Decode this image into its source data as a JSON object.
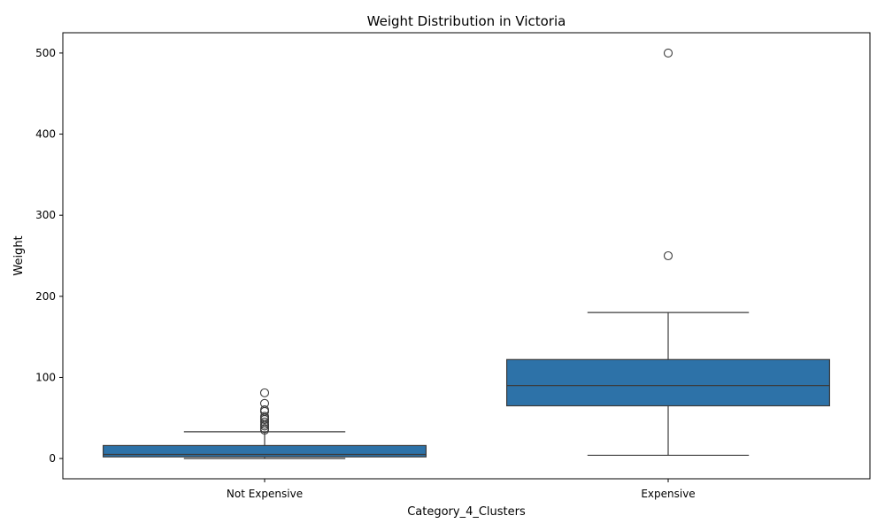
{
  "chart_data": {
    "type": "box",
    "title": "Weight Distribution in Victoria",
    "xlabel": "Category_4_Clusters",
    "ylabel": "Weight",
    "ylim": [
      -25,
      525
    ],
    "y_ticks": [
      0,
      100,
      200,
      300,
      400,
      500
    ],
    "grid": false,
    "legend": "none",
    "box_color": "#2d72a8",
    "line_color": "#3b3b3b",
    "categories": [
      "Not Expensive",
      "Expensive"
    ],
    "boxes": [
      {
        "category": "Not Expensive",
        "whisker_low": 0,
        "q1": 2,
        "median": 5,
        "q3": 16,
        "whisker_high": 33,
        "outliers": [
          35,
          37,
          40,
          42,
          45,
          48,
          50,
          52,
          58,
          60,
          68,
          81
        ]
      },
      {
        "category": "Expensive",
        "whisker_low": 4,
        "q1": 65,
        "median": 90,
        "q3": 122,
        "whisker_high": 180,
        "outliers": [
          250,
          500
        ]
      }
    ]
  }
}
